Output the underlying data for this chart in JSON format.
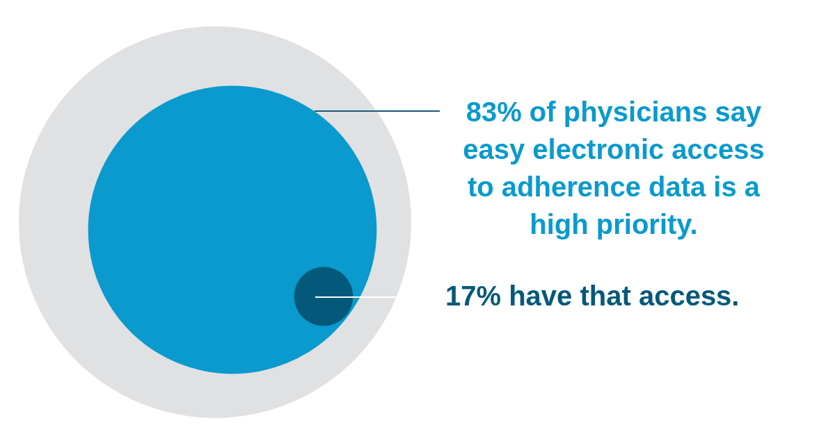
{
  "chart_data": {
    "type": "other",
    "categories": [
      "of physicians say easy electronic access to adherence data is a high priority.",
      "have that access."
    ],
    "values": [
      83,
      17
    ],
    "value_labels": [
      "83%",
      "17%"
    ],
    "colors": [
      "#0a9acd",
      "#04597a"
    ]
  }
}
